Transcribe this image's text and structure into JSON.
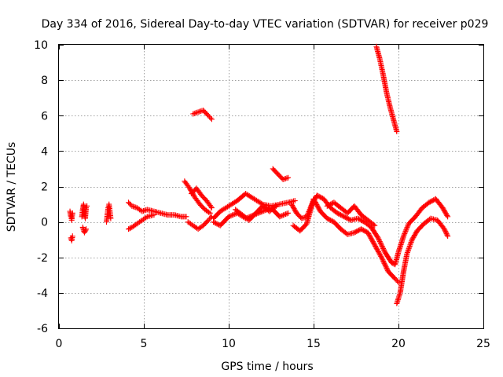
{
  "chart_data": {
    "type": "scatter",
    "title": "Day 334 of 2016, Sidereal Day-to-day VTEC variation (SDTVAR) for receiver p029",
    "xlabel": "GPS time / hours",
    "ylabel": "SDTVAR / TECUs",
    "xlim": [
      0,
      25
    ],
    "ylim": [
      -6,
      10
    ],
    "xticks": [
      0,
      5,
      10,
      15,
      20,
      25
    ],
    "yticks": [
      -6,
      -4,
      -2,
      0,
      2,
      4,
      6,
      8,
      10
    ],
    "grid": true,
    "marker": "+",
    "color": "#ff0000",
    "series": [
      {
        "name": "SDTVAR",
        "segments": [
          {
            "x": [
              0.65,
              0.7,
              0.75,
              0.8
            ],
            "y": [
              0.6,
              0.3,
              0.1,
              0.5
            ]
          },
          {
            "x": [
              0.7,
              0.75,
              0.8
            ],
            "y": [
              -0.9,
              -1.05,
              -0.8
            ]
          },
          {
            "x": [
              1.35,
              1.4,
              1.45,
              1.5,
              1.55,
              1.6,
              1.65
            ],
            "y": [
              0.3,
              0.7,
              1.0,
              0.5,
              0.2,
              0.8,
              0.9
            ]
          },
          {
            "x": [
              1.4,
              1.5,
              1.6
            ],
            "y": [
              -0.3,
              -0.6,
              -0.4
            ]
          },
          {
            "x": [
              2.8,
              2.85,
              2.9,
              2.95,
              3.0,
              3.05
            ],
            "y": [
              0.0,
              0.4,
              0.8,
              1.0,
              0.6,
              0.2
            ]
          },
          {
            "x": [
              4.1,
              4.3,
              4.6,
              4.9,
              5.2,
              5.6,
              6.0,
              6.4,
              6.8,
              7.2,
              7.5
            ],
            "y": [
              1.1,
              0.9,
              0.8,
              0.6,
              0.7,
              0.6,
              0.5,
              0.4,
              0.4,
              0.3,
              0.3
            ]
          },
          {
            "x": [
              4.1,
              4.3,
              4.6,
              4.9,
              5.2,
              5.6
            ],
            "y": [
              -0.4,
              -0.3,
              -0.1,
              0.1,
              0.3,
              0.4
            ]
          },
          {
            "x": [
              7.4,
              7.7,
              8.0,
              8.3,
              8.6,
              8.9
            ],
            "y": [
              2.3,
              1.9,
              1.4,
              1.0,
              0.7,
              0.5
            ]
          },
          {
            "x": [
              7.6,
              7.9,
              8.2,
              8.5,
              8.8,
              9.0
            ],
            "y": [
              0.0,
              -0.2,
              -0.4,
              -0.2,
              0.1,
              0.3
            ]
          },
          {
            "x": [
              7.8,
              8.1,
              8.4,
              8.7,
              9.0
            ],
            "y": [
              1.6,
              1.9,
              1.5,
              1.2,
              0.8
            ]
          },
          {
            "x": [
              7.9,
              8.2,
              8.5,
              8.8,
              9.0
            ],
            "y": [
              6.1,
              6.2,
              6.3,
              6.0,
              5.8
            ]
          },
          {
            "x": [
              9.1,
              9.5,
              10.0,
              10.5,
              11.0,
              11.5,
              12.0,
              12.5,
              13.0,
              13.5,
              13.9
            ],
            "y": [
              0.2,
              0.6,
              0.9,
              1.2,
              1.6,
              1.3,
              1.0,
              0.9,
              1.0,
              1.1,
              1.2
            ]
          },
          {
            "x": [
              9.1,
              9.5,
              10.0,
              10.5,
              11.0,
              11.5,
              12.0,
              12.5,
              13.0,
              13.5
            ],
            "y": [
              0.0,
              -0.2,
              0.3,
              0.5,
              0.2,
              0.4,
              0.6,
              0.8,
              0.3,
              0.5
            ]
          },
          {
            "x": [
              10.4,
              10.8,
              11.2,
              11.6,
              12.0,
              12.4,
              12.8
            ],
            "y": [
              0.7,
              0.4,
              0.1,
              0.5,
              0.9,
              0.6,
              0.9
            ]
          },
          {
            "x": [
              12.6,
              12.9,
              13.2,
              13.5
            ],
            "y": [
              3.0,
              2.7,
              2.4,
              2.5
            ]
          },
          {
            "x": [
              13.7,
              14.0,
              14.3,
              14.6,
              14.9,
              15.2,
              15.6,
              16.0,
              16.4,
              16.8,
              17.2,
              17.6,
              18.0,
              18.4,
              18.8,
              19.2,
              19.6,
              19.8,
              20.0,
              20.3,
              20.6,
              21.0,
              21.4,
              21.8,
              22.2,
              22.6,
              22.9
            ],
            "y": [
              1.0,
              0.5,
              0.2,
              0.3,
              1.0,
              1.5,
              1.3,
              0.8,
              0.5,
              0.3,
              0.1,
              0.2,
              0.0,
              -0.3,
              -0.9,
              -1.7,
              -2.3,
              -2.4,
              -1.7,
              -0.8,
              -0.1,
              0.3,
              0.8,
              1.1,
              1.3,
              0.8,
              0.3
            ]
          },
          {
            "x": [
              13.8,
              14.2,
              14.6,
              15.0,
              15.4,
              15.8,
              16.2,
              16.6,
              17.0,
              17.4,
              17.8,
              18.2,
              18.6,
              19.0,
              19.4,
              19.8,
              20.0
            ],
            "y": [
              -0.2,
              -0.5,
              -0.1,
              1.3,
              0.6,
              0.2,
              0.0,
              -0.4,
              -0.7,
              -0.6,
              -0.4,
              -0.6,
              -1.3,
              -2.0,
              -2.8,
              -3.2,
              -3.4
            ]
          },
          {
            "x": [
              15.8,
              16.2,
              16.6,
              17.0,
              17.4,
              17.8,
              18.2,
              18.6
            ],
            "y": [
              0.9,
              1.1,
              0.8,
              0.5,
              0.9,
              0.4,
              0.1,
              -0.2
            ]
          },
          {
            "x": [
              19.9,
              20.1,
              20.3,
              20.5,
              20.8,
              21.1,
              21.5,
              21.9,
              22.3,
              22.7,
              22.9
            ],
            "y": [
              -4.6,
              -4.0,
              -2.8,
              -1.8,
              -1.0,
              -0.5,
              -0.1,
              0.2,
              0.1,
              -0.4,
              -0.8
            ]
          },
          {
            "x": [
              18.7,
              18.9,
              19.1,
              19.3,
              19.5,
              19.7,
              19.9
            ],
            "y": [
              9.9,
              9.2,
              8.3,
              7.3,
              6.5,
              5.8,
              5.1
            ]
          }
        ]
      }
    ]
  }
}
